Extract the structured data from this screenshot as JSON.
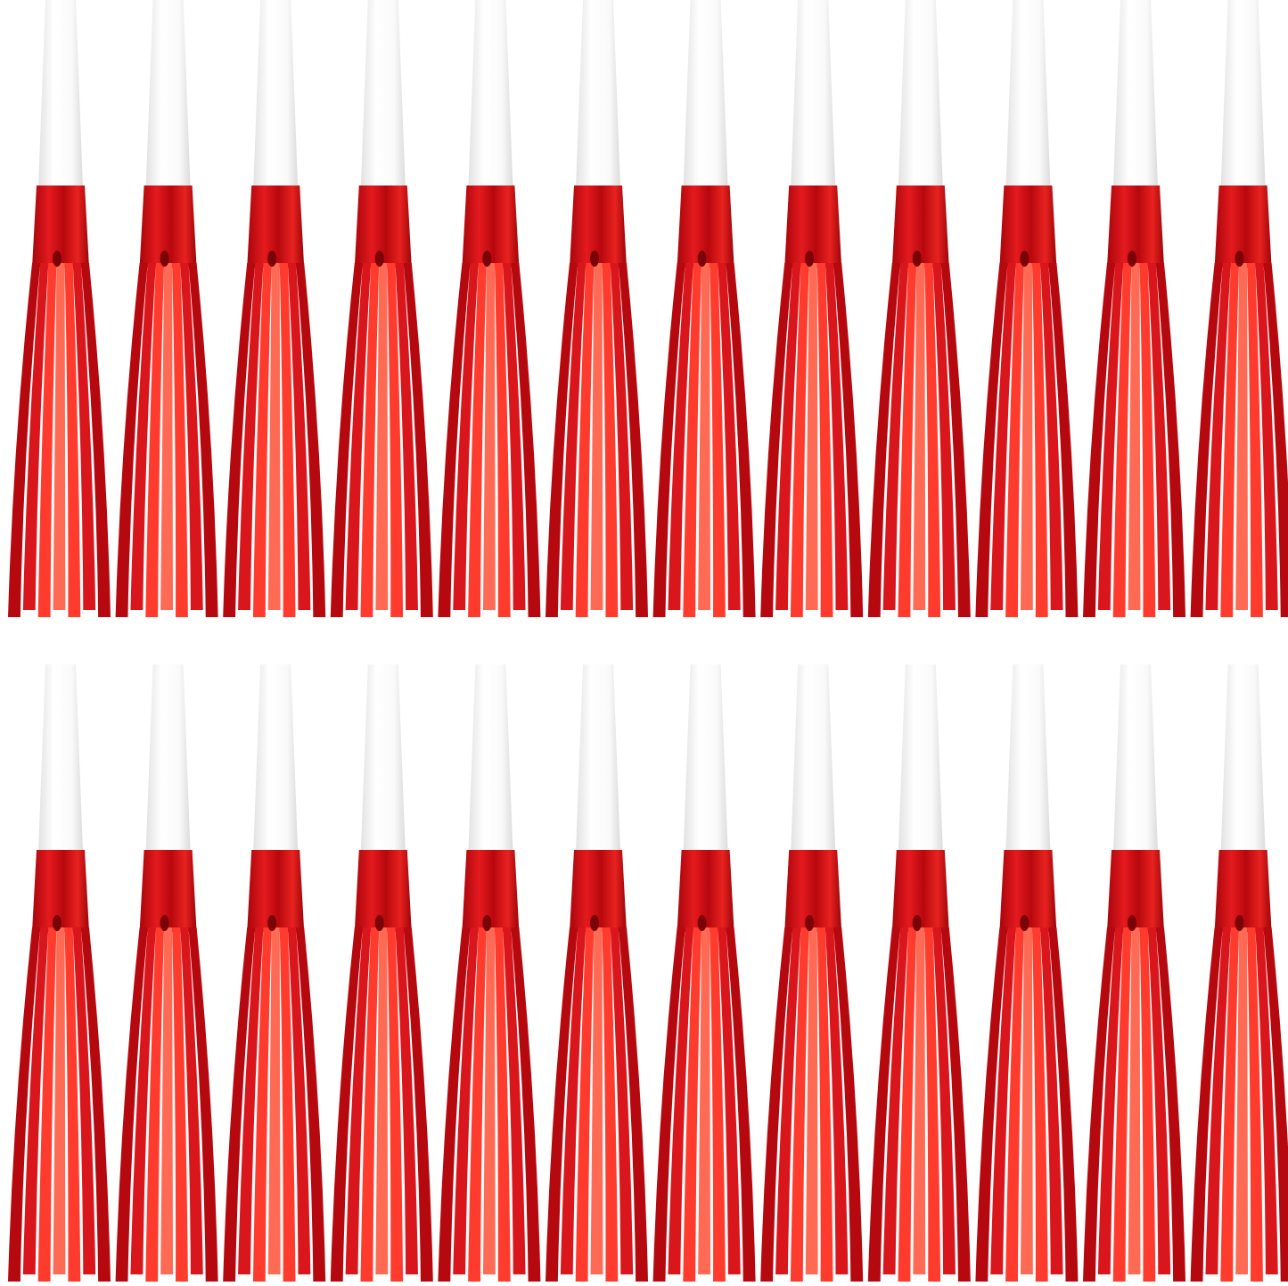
{
  "image": {
    "subject_icon": "party-horn-icon",
    "colors": {
      "background": "#ffffff",
      "mouthpiece": "#fbfbfb",
      "mouthpiece_shade": "#e4e4e4",
      "foil_dark": "#b5080f",
      "foil_mid": "#d8161c",
      "foil_light": "#ff3b2e",
      "foil_highlight": "#ff6a55"
    }
  }
}
